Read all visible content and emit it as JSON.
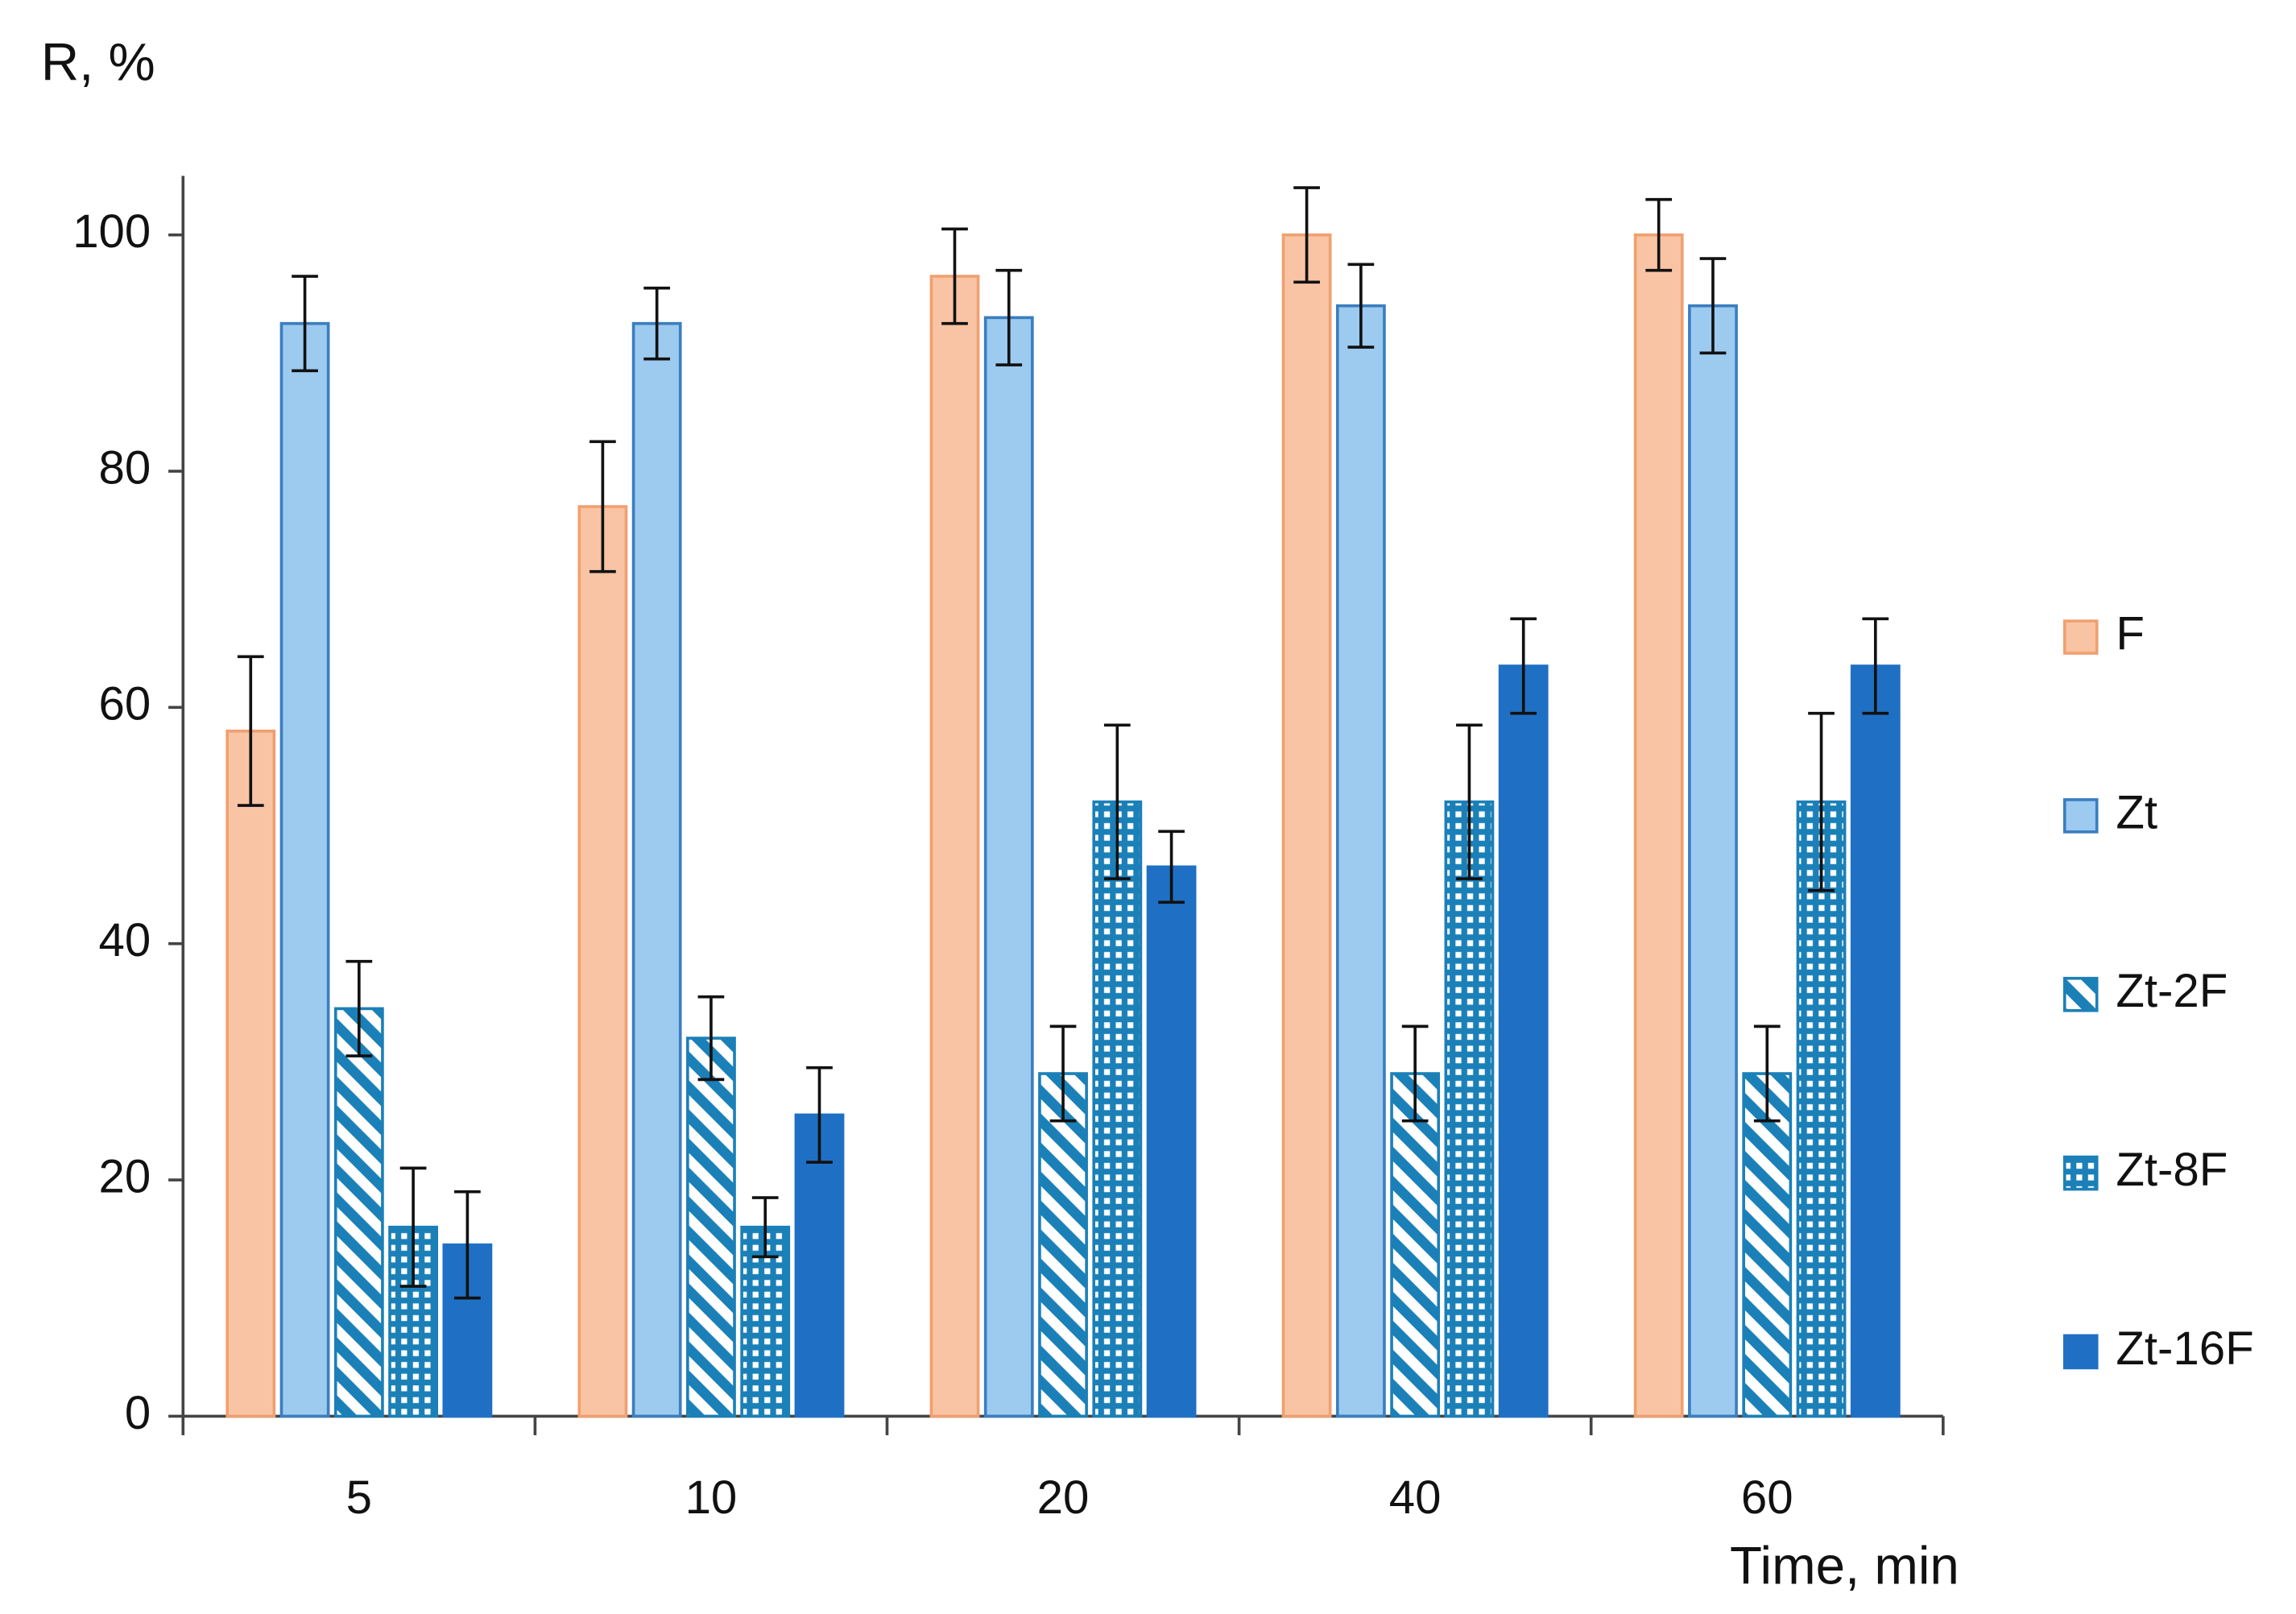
{
  "chart_data": {
    "type": "bar",
    "y_label": "R, %",
    "x_label": "Time, min",
    "categories": [
      "5",
      "10",
      "20",
      "40",
      "60"
    ],
    "series": [
      {
        "name": "F",
        "color": "#f9c4a4",
        "pattern": "solid",
        "values": [
          58,
          77,
          96.5,
          100,
          100
        ],
        "errors": [
          6.3,
          5.5,
          4,
          4,
          3
        ]
      },
      {
        "name": "Zt",
        "color": "#9dcaef",
        "pattern": "solid",
        "values": [
          92.5,
          92.5,
          93,
          94,
          94
        ],
        "errors": [
          4,
          3,
          4,
          3.5,
          4
        ]
      },
      {
        "name": "Zt-2F",
        "color": "#1b80b8",
        "pattern": "stripes",
        "values": [
          34.5,
          32,
          29,
          29,
          29
        ],
        "errors": [
          4,
          3.5,
          4,
          4,
          4
        ]
      },
      {
        "name": "Zt-8F",
        "color": "#1b80b8",
        "pattern": "dots",
        "values": [
          16,
          16,
          52,
          52,
          52
        ],
        "errors": [
          5,
          2.5,
          6.5,
          6.5,
          7.5
        ]
      },
      {
        "name": "Zt-16F",
        "color": "#1f70c4",
        "pattern": "solid",
        "values": [
          14.5,
          25.5,
          46.5,
          63.5,
          63.5
        ],
        "errors": [
          4.5,
          4,
          3,
          4,
          4
        ]
      }
    ],
    "ylim": [
      0,
      105
    ],
    "yticks": [
      0,
      20,
      40,
      60,
      80,
      100
    ],
    "grid": false,
    "legend": "right"
  }
}
